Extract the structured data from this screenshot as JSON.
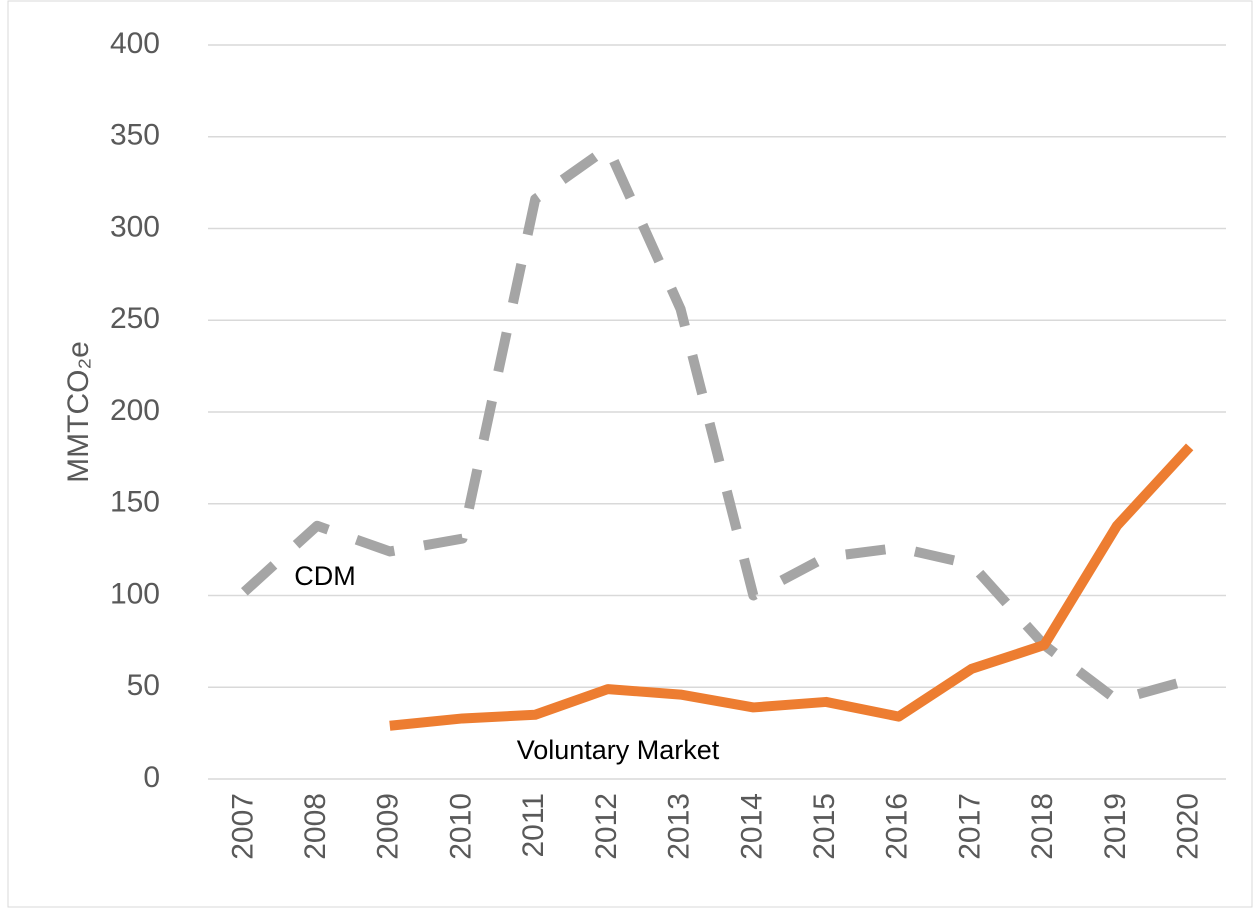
{
  "chart_data": {
    "type": "line",
    "y_label": "MMTCO₂e",
    "categories": [
      "2007",
      "2008",
      "2009",
      "2010",
      "2011",
      "2012",
      "2013",
      "2014",
      "2015",
      "2016",
      "2017",
      "2018",
      "2019",
      "2020"
    ],
    "series": [
      {
        "name": "CDM",
        "color": "#a5a5a5",
        "dashed": true,
        "values": [
          102,
          138,
          124,
          131,
          316,
          344,
          256,
          100,
          121,
          126,
          117,
          73,
          43,
          54
        ]
      },
      {
        "name": "Voluntary Market",
        "color": "#ed7d31",
        "dashed": false,
        "values": [
          null,
          null,
          29,
          33,
          35,
          49,
          46,
          39,
          42,
          34,
          60,
          73,
          138,
          181
        ]
      }
    ],
    "ylim": [
      0,
      400
    ],
    "yticks": [
      0,
      50,
      100,
      150,
      200,
      250,
      300,
      350,
      400
    ],
    "grid": true
  }
}
